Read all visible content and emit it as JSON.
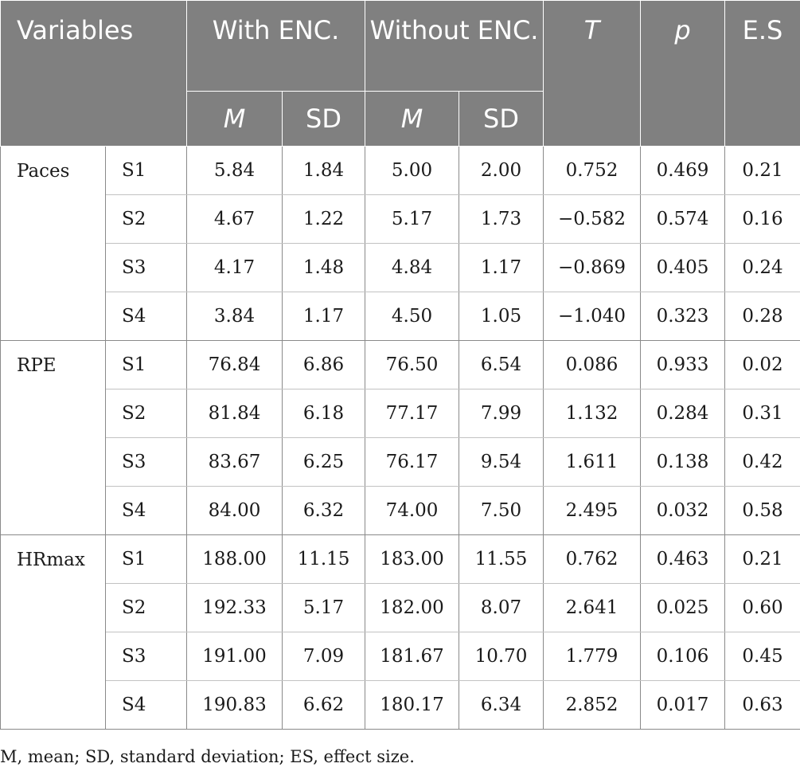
{
  "header": {
    "variables": "Variables",
    "with_enc": "With ENC.",
    "without_enc": "Without ENC.",
    "t": "T",
    "p": "p",
    "es": "E.S",
    "m1": "M",
    "sd1": "SD",
    "m2": "M",
    "sd2": "SD"
  },
  "groups": [
    {
      "name": "Paces",
      "rows": [
        {
          "session": "S1",
          "with_m": "5.84",
          "with_sd": "1.84",
          "without_m": "5.00",
          "without_sd": "2.00",
          "t": "0.752",
          "p": "0.469",
          "es": "0.21"
        },
        {
          "session": "S2",
          "with_m": "4.67",
          "with_sd": "1.22",
          "without_m": "5.17",
          "without_sd": "1.73",
          "t": "−0.582",
          "p": "0.574",
          "es": "0.16"
        },
        {
          "session": "S3",
          "with_m": "4.17",
          "with_sd": "1.48",
          "without_m": "4.84",
          "without_sd": "1.17",
          "t": "−0.869",
          "p": "0.405",
          "es": "0.24"
        },
        {
          "session": "S4",
          "with_m": "3.84",
          "with_sd": "1.17",
          "without_m": "4.50",
          "without_sd": "1.05",
          "t": "−1.040",
          "p": "0.323",
          "es": "0.28"
        }
      ]
    },
    {
      "name": "RPE",
      "rows": [
        {
          "session": "S1",
          "with_m": "76.84",
          "with_sd": "6.86",
          "without_m": "76.50",
          "without_sd": "6.54",
          "t": "0.086",
          "p": "0.933",
          "es": "0.02"
        },
        {
          "session": "S2",
          "with_m": "81.84",
          "with_sd": "6.18",
          "without_m": "77.17",
          "without_sd": "7.99",
          "t": "1.132",
          "p": "0.284",
          "es": "0.31"
        },
        {
          "session": "S3",
          "with_m": "83.67",
          "with_sd": "6.25",
          "without_m": "76.17",
          "without_sd": "9.54",
          "t": "1.611",
          "p": "0.138",
          "es": "0.42"
        },
        {
          "session": "S4",
          "with_m": "84.00",
          "with_sd": "6.32",
          "without_m": "74.00",
          "without_sd": "7.50",
          "t": "2.495",
          "p": "0.032",
          "es": "0.58"
        }
      ]
    },
    {
      "name": "HRmax",
      "rows": [
        {
          "session": "S1",
          "with_m": "188.00",
          "with_sd": "11.15",
          "without_m": "183.00",
          "without_sd": "11.55",
          "t": "0.762",
          "p": "0.463",
          "es": "0.21"
        },
        {
          "session": "S2",
          "with_m": "192.33",
          "with_sd": "5.17",
          "without_m": "182.00",
          "without_sd": "8.07",
          "t": "2.641",
          "p": "0.025",
          "es": "0.60"
        },
        {
          "session": "S3",
          "with_m": "191.00",
          "with_sd": "7.09",
          "without_m": "181.67",
          "without_sd": "10.70",
          "t": "1.779",
          "p": "0.106",
          "es": "0.45"
        },
        {
          "session": "S4",
          "with_m": "190.83",
          "with_sd": "6.62",
          "without_m": "180.17",
          "without_sd": "6.34",
          "t": "2.852",
          "p": "0.017",
          "es": "0.63"
        }
      ]
    }
  ],
  "footnote": "M, mean; SD, standard deviation; ES, effect size."
}
